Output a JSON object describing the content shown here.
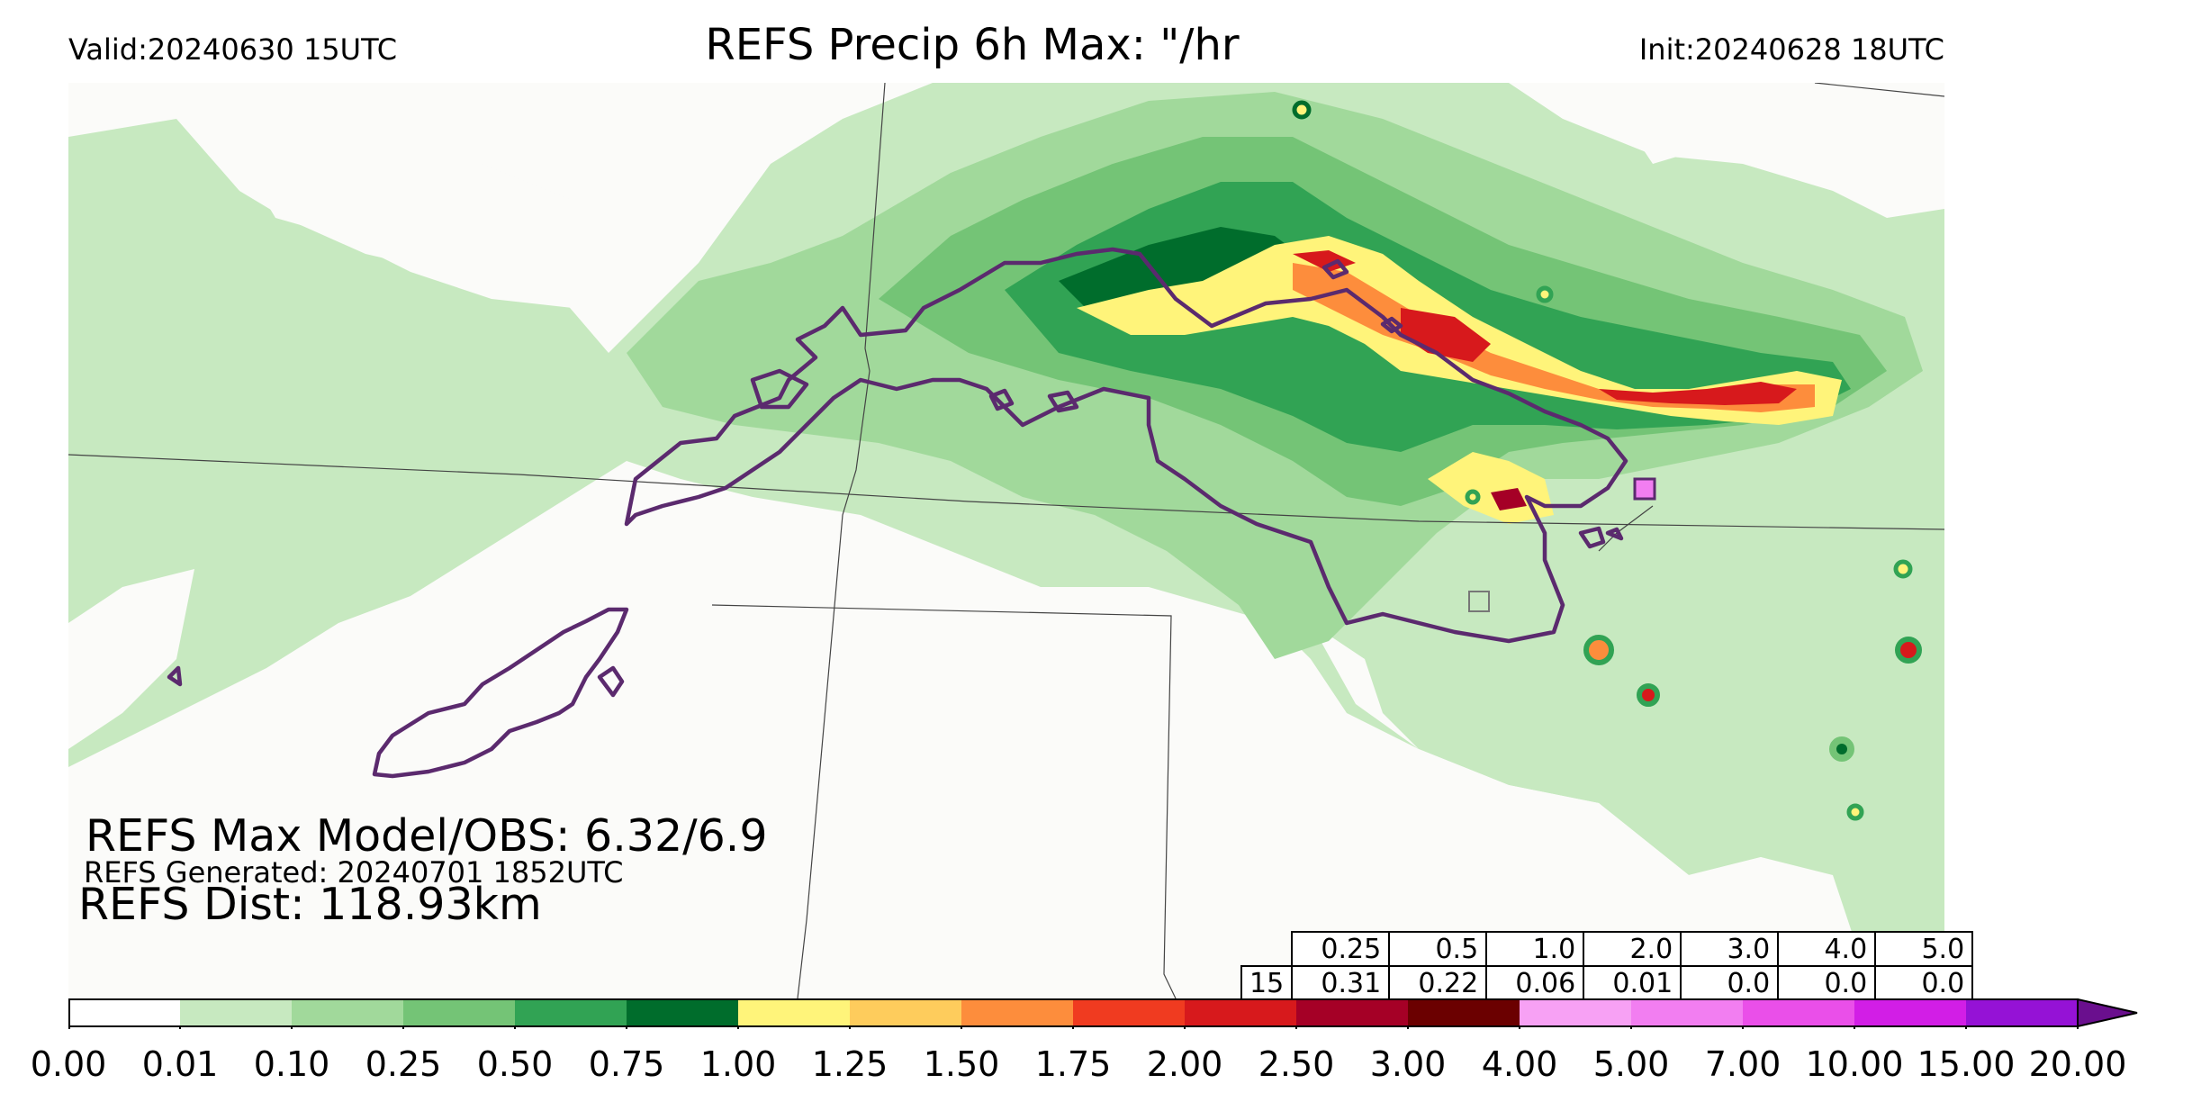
{
  "header": {
    "valid": "Valid:20240630 15UTC",
    "title": "REFS Precip 6h Max: \"/hr",
    "init": "Init:20240628 18UTC"
  },
  "stats": {
    "max": "REFS Max Model/OBS: 6.32/6.9",
    "generated": "REFS Generated: 20240701 1852UTC",
    "dist": "REFS Dist: 118.93km"
  },
  "table": {
    "thresholds": [
      "0.25",
      "0.5",
      "1.0",
      "2.0",
      "3.0",
      "4.0",
      "5.0"
    ],
    "row_label": "15",
    "values": [
      "0.31",
      "0.22",
      "0.06",
      "0.01",
      "0.0",
      "0.0",
      "0.0"
    ]
  },
  "colorbar": {
    "ticks": [
      "0.00",
      "0.01",
      "0.10",
      "0.25",
      "0.50",
      "0.75",
      "1.00",
      "1.25",
      "1.50",
      "1.75",
      "2.00",
      "2.50",
      "3.00",
      "4.00",
      "5.00",
      "7.00",
      "10.00",
      "15.00",
      "20.00"
    ],
    "colors": [
      "#ffffff",
      "#c7e9c0",
      "#a1d99b",
      "#74c476",
      "#31a354",
      "#006d2c",
      "#fff47a",
      "#fecc5c",
      "#fd8d3c",
      "#f03b20",
      "#d7191c",
      "#a50026",
      "#6b0000",
      "#f7a1f4",
      "#f27ef1",
      "#ea4fe9",
      "#d21ee6",
      "#9512d6",
      "#6a0f8e"
    ]
  },
  "map": {
    "precip_colors": {
      "light": "#c7e9c0",
      "light2": "#a1d99b",
      "mid": "#74c476",
      "mid2": "#31a354",
      "dark": "#006d2c",
      "yellow": "#fff47a",
      "orange": "#fd8d3c",
      "red": "#d7191c",
      "darkred": "#a50026",
      "pink": "#f27ef1"
    },
    "obs_contour_color": "#5b2a6e",
    "boundary_color": "#444444"
  }
}
